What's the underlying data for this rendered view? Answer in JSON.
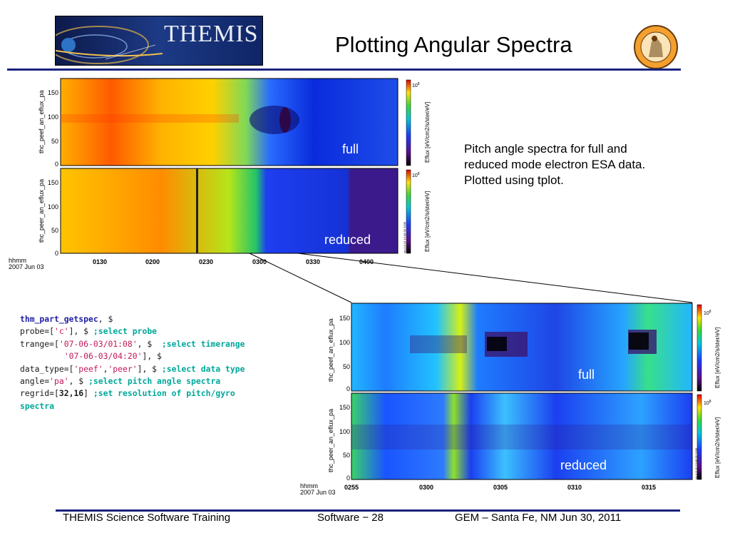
{
  "header": {
    "logo_text": "THEMIS",
    "title": "Plotting Angular Spectra"
  },
  "description": "Pitch angle spectra for full and reduced mode electron ESA data. Plotted using tplot.",
  "code": {
    "fn": "thm_part_getspec",
    "l1_end": ", $",
    "probe_prefix": "probe=[",
    "probe_val": "'c'",
    "probe_end": "], $ ",
    "probe_cmt": ";select probe",
    "trange_prefix": "trange=[",
    "trange_start": "'07-06-03/01:08'",
    "trange_mid": ", $  ",
    "trange_cmt": ";select timerange",
    "trange_end": "'07-06-03/04:20'",
    "trange_end_tail": "], $",
    "dtype_prefix": "data_type=[",
    "dtype_v1": "'peef'",
    "dtype_comma": ",",
    "dtype_v2": "'peer'",
    "dtype_end": "], $ ",
    "dtype_cmt": ";select data type",
    "angle_prefix": "angle=",
    "angle_val": "'pa'",
    "angle_end": ", $ ",
    "angle_cmt": ";select pitch angle spectra",
    "regrid_prefix": "regrid=[",
    "regrid_val": "32,16",
    "regrid_end": "] ",
    "regrid_cmt1": ";set resolution of pitch/gyro",
    "regrid_cmt2": "spectra"
  },
  "plot_top": {
    "panel1_ylabel": "thc_peef_an_eflux_pa",
    "panel2_ylabel": "thc_peer_an_eflux_pa",
    "panel1_tag": "full",
    "panel2_tag": "reduced",
    "y_ticks": [
      "150",
      "100",
      "50",
      "0"
    ],
    "cbar_label": "Eflux [eV/cm2/s/ster/eV]",
    "cbar_exp_base": "10",
    "cbar_exp_power": "8",
    "stamp": "sis-4.8.19 13:48:30 2008",
    "x_ticks": [
      "0130",
      "0200",
      "0230",
      "0300",
      "0330",
      "0400"
    ],
    "x_unit": "hhmm",
    "x_date": "2007 Jun 03"
  },
  "plot_zoom": {
    "panel1_ylabel": "thc_peef_an_eflux_pa",
    "panel2_ylabel": "thc_peer_an_eflux_pa",
    "panel1_tag": "full",
    "panel2_tag": "reduced",
    "y_ticks": [
      "150",
      "100",
      "50",
      "0"
    ],
    "cbar_label": "Eflux [eV/cm2/s/ster/eV]",
    "cbar_exp_base": "10",
    "cbar_exp_power": "8",
    "stamp": "sis-4.8.19 13:48:05 2008",
    "x_ticks": [
      "0255",
      "0300",
      "0305",
      "0310",
      "0315"
    ],
    "x_unit": "hhmm",
    "x_date": "2007 Jun 03"
  },
  "footer": {
    "left": "THEMIS Science Software Training",
    "center": "Software − 28",
    "right": "GEM – Santa Fe, NM   Jun 30, 2011"
  },
  "colors": {
    "rule": "#1a237e",
    "code_function": "#1f1fa3",
    "code_string": "#c2185b",
    "code_comment": "#00a89b"
  },
  "icons": [
    "themis-logo",
    "themis-badge"
  ]
}
